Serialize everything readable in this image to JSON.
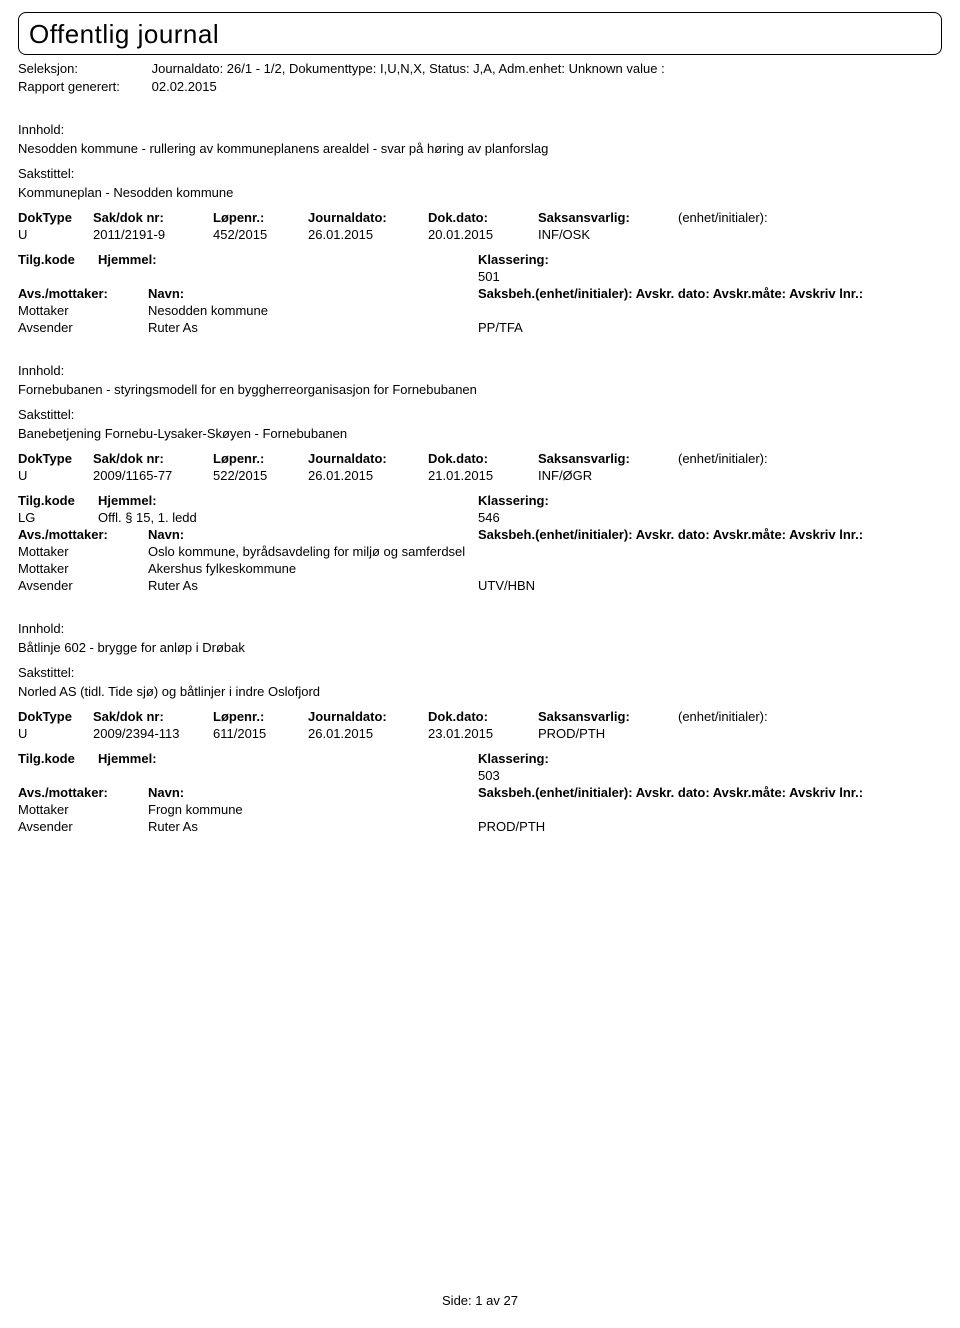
{
  "title": "Offentlig journal",
  "header": {
    "seleksjon_label": "Seleksjon:",
    "seleksjon_value": "Journaldato: 26/1 - 1/2, Dokumenttype: I,U,N,X, Status: J,A, Adm.enhet: Unknown value :",
    "rapport_label": "Rapport generert:",
    "rapport_value": "02.02.2015"
  },
  "labels": {
    "innhold": "Innhold:",
    "sakstittel": "Sakstittel:",
    "doktype": "DokType",
    "saknr": "Sak/dok nr:",
    "lopenr": "Løpenr.:",
    "journaldato": "Journaldato:",
    "dokdato": "Dok.dato:",
    "saksansvarlig": "Saksansvarlig:",
    "enhet_initialer": "(enhet/initialer):",
    "tilgkode": "Tilg.kode",
    "hjemmel": "Hjemmel:",
    "klassering": "Klassering:",
    "avs_mottaker": "Avs./mottaker:",
    "navn": "Navn:",
    "saksbeh_line": "Saksbeh.(enhet/initialer): Avskr. dato: Avskr.måte: Avskriv lnr.:"
  },
  "entries": [
    {
      "innhold": "Nesodden kommune - rullering av kommuneplanens arealdel - svar på høring av planforslag",
      "sakstittel": "Kommuneplan - Nesodden kommune",
      "doktype": "U",
      "saknr": "2011/2191-9",
      "lopenr": "452/2015",
      "jdato": "26.01.2015",
      "ddato": "20.01.2015",
      "saksansv": "INF/OSK",
      "enhet": "",
      "tilgkode": "",
      "hjemmel": "",
      "klassering": "501",
      "parties": [
        {
          "role": "Mottaker",
          "navn": "Nesodden kommune",
          "code": ""
        },
        {
          "role": "Avsender",
          "navn": "Ruter As",
          "code": "PP/TFA"
        }
      ]
    },
    {
      "innhold": "Fornebubanen - styringsmodell for en byggherreorganisasjon for Fornebubanen",
      "sakstittel": "Banebetjening Fornebu-Lysaker-Skøyen - Fornebubanen",
      "doktype": "U",
      "saknr": "2009/1165-77",
      "lopenr": "522/2015",
      "jdato": "26.01.2015",
      "ddato": "21.01.2015",
      "saksansv": "INF/ØGR",
      "enhet": "",
      "tilgkode": "LG",
      "hjemmel": "Offl. § 15, 1. ledd",
      "klassering": "546",
      "parties": [
        {
          "role": "Mottaker",
          "navn": "Oslo kommune, byrådsavdeling for miljø og samferdsel",
          "code": ""
        },
        {
          "role": "Mottaker",
          "navn": "Akershus fylkeskommune",
          "code": ""
        },
        {
          "role": "Avsender",
          "navn": "Ruter As",
          "code": "UTV/HBN"
        }
      ]
    },
    {
      "innhold": "Båtlinje 602 - brygge for anløp i Drøbak",
      "sakstittel": "Norled AS (tidl. Tide sjø) og båtlinjer i indre Oslofjord",
      "doktype": "U",
      "saknr": "2009/2394-113",
      "lopenr": "611/2015",
      "jdato": "26.01.2015",
      "ddato": "23.01.2015",
      "saksansv": "PROD/PTH",
      "enhet": "",
      "tilgkode": "",
      "hjemmel": "",
      "klassering": "503",
      "parties": [
        {
          "role": "Mottaker",
          "navn": "Frogn kommune",
          "code": ""
        },
        {
          "role": "Avsender",
          "navn": "Ruter As",
          "code": "PROD/PTH"
        }
      ]
    }
  ],
  "footer": {
    "side_label": "Side:",
    "page": "1",
    "av": "av",
    "total": "27"
  }
}
